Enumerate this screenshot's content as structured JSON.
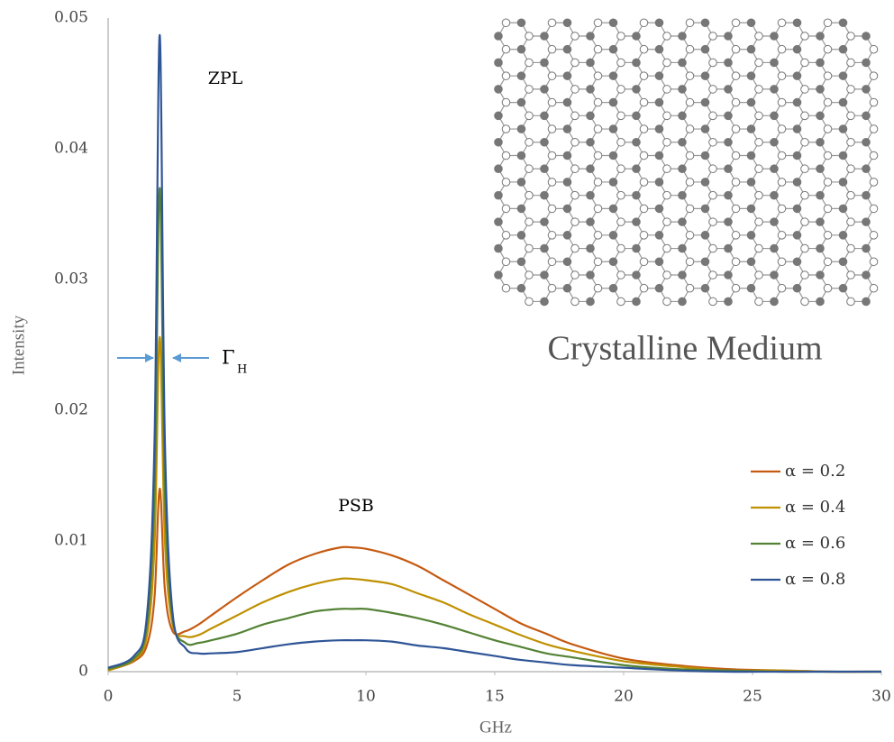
{
  "chart_data": {
    "type": "line",
    "x_label": "GHz",
    "y_label": "Intensity",
    "annotations": {
      "zpl": "ZPL",
      "psb": "PSB",
      "linewidth": "Γ",
      "linewidth_subscript": "H",
      "inset_caption": "Crystalline Medium"
    },
    "x": [
      0,
      1,
      1.5,
      1.8,
      2,
      2.2,
      2.5,
      3,
      3.5,
      4,
      5,
      6,
      7,
      8,
      9,
      9.5,
      10,
      11,
      12,
      13,
      14,
      15,
      16,
      17,
      18,
      20,
      22,
      24,
      26,
      28,
      30
    ],
    "series": [
      {
        "name": "α = 0.2",
        "color": "#c55a11",
        "values": [
          0.0001,
          0.0008,
          0.002,
          0.0057,
          0.014,
          0.0063,
          0.0031,
          0.0031,
          0.0036,
          0.0043,
          0.0057,
          0.007,
          0.0082,
          0.009,
          0.0095,
          0.0095,
          0.0094,
          0.0089,
          0.0081,
          0.007,
          0.0059,
          0.0048,
          0.0037,
          0.0029,
          0.0021,
          0.001,
          0.0005,
          0.0002,
          0.0001,
          0,
          0
        ]
      },
      {
        "name": "α = 0.4",
        "color": "#bf9000",
        "values": [
          0.0001,
          0.0009,
          0.0027,
          0.0097,
          0.0256,
          0.0101,
          0.0036,
          0.0027,
          0.0028,
          0.0033,
          0.0043,
          0.0053,
          0.0061,
          0.0067,
          0.0071,
          0.0071,
          0.007,
          0.0067,
          0.006,
          0.0053,
          0.0044,
          0.0036,
          0.0028,
          0.0021,
          0.0016,
          0.0008,
          0.0004,
          0.0001,
          0.0001,
          0,
          0
        ]
      },
      {
        "name": "α = 0.6",
        "color": "#548235",
        "values": [
          0.0002,
          0.001,
          0.0035,
          0.0137,
          0.037,
          0.014,
          0.0041,
          0.0022,
          0.0022,
          0.0024,
          0.0029,
          0.0036,
          0.0041,
          0.0046,
          0.0048,
          0.0048,
          0.0048,
          0.0045,
          0.0041,
          0.0036,
          0.003,
          0.0024,
          0.0019,
          0.0014,
          0.0011,
          0.0005,
          0.0002,
          0.0001,
          0,
          0,
          0
        ]
      },
      {
        "name": "α = 0.8",
        "color": "#2f5597",
        "values": [
          0.0003,
          0.0012,
          0.0042,
          0.0177,
          0.0487,
          0.0178,
          0.0045,
          0.0018,
          0.0014,
          0.0014,
          0.0015,
          0.0018,
          0.0021,
          0.0023,
          0.0024,
          0.0024,
          0.0024,
          0.0023,
          0.002,
          0.0018,
          0.0015,
          0.0012,
          0.0009,
          0.0007,
          0.0005,
          0.0003,
          0.0001,
          0,
          0,
          0,
          0
        ]
      }
    ],
    "xlim": [
      0,
      30
    ],
    "xticks": [
      0,
      5,
      10,
      15,
      20,
      25,
      30
    ],
    "ylim": [
      0,
      0.05
    ],
    "yticks": [
      0,
      0.01,
      0.02,
      0.03,
      0.04,
      0.05
    ],
    "grid": false,
    "legend": "right"
  }
}
